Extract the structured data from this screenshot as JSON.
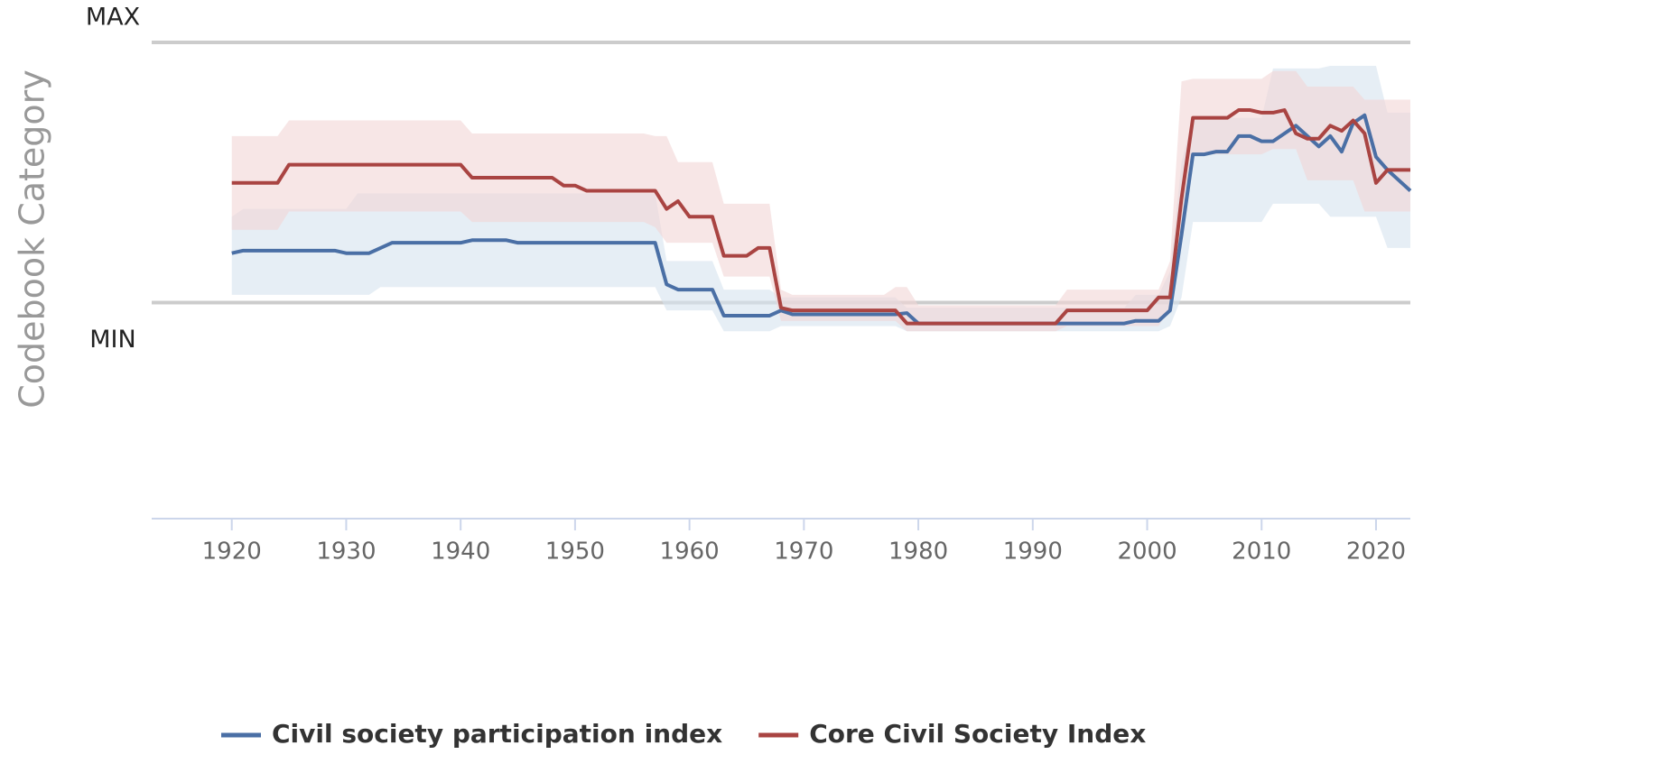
{
  "chart_data": {
    "type": "line",
    "ylabel": "Codebook Category",
    "x": [
      1920,
      1921,
      1922,
      1923,
      1924,
      1925,
      1926,
      1927,
      1928,
      1929,
      1930,
      1931,
      1932,
      1933,
      1934,
      1935,
      1936,
      1937,
      1938,
      1939,
      1940,
      1941,
      1942,
      1943,
      1944,
      1945,
      1946,
      1947,
      1948,
      1949,
      1950,
      1951,
      1952,
      1953,
      1954,
      1955,
      1956,
      1957,
      1958,
      1959,
      1960,
      1961,
      1962,
      1963,
      1964,
      1965,
      1966,
      1967,
      1968,
      1969,
      1970,
      1971,
      1972,
      1973,
      1974,
      1975,
      1976,
      1977,
      1978,
      1979,
      1980,
      1981,
      1982,
      1983,
      1984,
      1985,
      1986,
      1987,
      1988,
      1989,
      1990,
      1991,
      1992,
      1993,
      1994,
      1995,
      1996,
      1997,
      1998,
      1999,
      2000,
      2001,
      2002,
      2003,
      2004,
      2005,
      2006,
      2007,
      2008,
      2009,
      2010,
      2011,
      2012,
      2013,
      2014,
      2015,
      2016,
      2017,
      2018,
      2019,
      2020,
      2021,
      2022,
      2023
    ],
    "xlim": [
      1913,
      2023
    ],
    "xticks": [
      1920,
      1930,
      1940,
      1950,
      1960,
      1970,
      1980,
      1990,
      2000,
      2010,
      2020
    ],
    "ylim": [
      -0.83,
      1
    ],
    "yticks": [
      {
        "value": 1,
        "label": "MAX"
      },
      {
        "value": 0,
        "label": "MIN"
      }
    ],
    "grid": true,
    "legend": "bottom",
    "series": [
      {
        "name": "Civil society participation index",
        "color": "#4a6fa5",
        "band_color": "#d6e2ef",
        "values": [
          0.19,
          0.2,
          0.2,
          0.2,
          0.2,
          0.2,
          0.2,
          0.2,
          0.2,
          0.2,
          0.19,
          0.19,
          0.19,
          0.21,
          0.23,
          0.23,
          0.23,
          0.23,
          0.23,
          0.23,
          0.23,
          0.24,
          0.24,
          0.24,
          0.24,
          0.23,
          0.23,
          0.23,
          0.23,
          0.23,
          0.23,
          0.23,
          0.23,
          0.23,
          0.23,
          0.23,
          0.23,
          0.23,
          0.07,
          0.05,
          0.05,
          0.05,
          0.05,
          -0.05,
          -0.05,
          -0.05,
          -0.05,
          -0.05,
          -0.03,
          -0.045,
          -0.045,
          -0.045,
          -0.045,
          -0.045,
          -0.045,
          -0.045,
          -0.045,
          -0.045,
          -0.045,
          -0.04,
          -0.08,
          -0.08,
          -0.08,
          -0.08,
          -0.08,
          -0.08,
          -0.08,
          -0.08,
          -0.08,
          -0.08,
          -0.08,
          -0.08,
          -0.08,
          -0.08,
          -0.08,
          -0.08,
          -0.08,
          -0.08,
          -0.08,
          -0.07,
          -0.07,
          -0.07,
          -0.03,
          0.26,
          0.57,
          0.57,
          0.58,
          0.58,
          0.64,
          0.64,
          0.62,
          0.62,
          0.65,
          0.68,
          0.64,
          0.6,
          0.64,
          0.58,
          0.69,
          0.72,
          0.56,
          0.51,
          0.47,
          0.43
        ],
        "upper": [
          0.33,
          0.36,
          0.36,
          0.36,
          0.36,
          0.36,
          0.36,
          0.36,
          0.36,
          0.36,
          0.36,
          0.42,
          0.42,
          0.42,
          0.42,
          0.42,
          0.42,
          0.42,
          0.42,
          0.42,
          0.42,
          0.42,
          0.42,
          0.42,
          0.42,
          0.42,
          0.42,
          0.42,
          0.42,
          0.42,
          0.42,
          0.42,
          0.42,
          0.42,
          0.42,
          0.42,
          0.42,
          0.42,
          0.16,
          0.16,
          0.16,
          0.16,
          0.16,
          0.05,
          0.05,
          0.05,
          0.05,
          0.05,
          0.02,
          0.02,
          0.02,
          0.02,
          0.02,
          0.02,
          0.02,
          0.02,
          0.02,
          0.02,
          0.02,
          -0.02,
          -0.02,
          -0.02,
          -0.02,
          -0.02,
          -0.02,
          -0.02,
          -0.02,
          -0.02,
          -0.02,
          -0.02,
          -0.02,
          -0.02,
          -0.02,
          -0.02,
          -0.02,
          -0.02,
          -0.02,
          -0.02,
          -0.02,
          0.03,
          0.03,
          0.03,
          0.12,
          0.54,
          0.71,
          0.71,
          0.71,
          0.71,
          0.71,
          0.71,
          0.71,
          0.9,
          0.9,
          0.9,
          0.9,
          0.9,
          0.91,
          0.91,
          0.91,
          0.91,
          0.91,
          0.73,
          0.73,
          0.73
        ],
        "lower": [
          0.03,
          0.03,
          0.03,
          0.03,
          0.03,
          0.03,
          0.03,
          0.03,
          0.03,
          0.03,
          0.03,
          0.03,
          0.03,
          0.06,
          0.06,
          0.06,
          0.06,
          0.06,
          0.06,
          0.06,
          0.06,
          0.06,
          0.06,
          0.06,
          0.06,
          0.06,
          0.06,
          0.06,
          0.06,
          0.06,
          0.06,
          0.06,
          0.06,
          0.06,
          0.06,
          0.06,
          0.06,
          0.06,
          -0.03,
          -0.03,
          -0.03,
          -0.03,
          -0.03,
          -0.11,
          -0.11,
          -0.11,
          -0.11,
          -0.11,
          -0.09,
          -0.09,
          -0.09,
          -0.09,
          -0.09,
          -0.09,
          -0.09,
          -0.09,
          -0.09,
          -0.09,
          -0.09,
          -0.11,
          -0.11,
          -0.11,
          -0.11,
          -0.11,
          -0.11,
          -0.11,
          -0.11,
          -0.11,
          -0.11,
          -0.11,
          -0.11,
          -0.11,
          -0.11,
          -0.11,
          -0.11,
          -0.11,
          -0.11,
          -0.11,
          -0.11,
          -0.11,
          -0.11,
          -0.11,
          -0.09,
          0.02,
          0.31,
          0.31,
          0.31,
          0.31,
          0.31,
          0.31,
          0.31,
          0.38,
          0.38,
          0.38,
          0.38,
          0.38,
          0.33,
          0.33,
          0.33,
          0.33,
          0.33,
          0.21,
          0.21,
          0.21
        ]
      },
      {
        "name": "Core Civil Society Index",
        "color": "#a94442",
        "band_color": "#f2d6d6",
        "values": [
          0.46,
          0.46,
          0.46,
          0.46,
          0.46,
          0.53,
          0.53,
          0.53,
          0.53,
          0.53,
          0.53,
          0.53,
          0.53,
          0.53,
          0.53,
          0.53,
          0.53,
          0.53,
          0.53,
          0.53,
          0.53,
          0.48,
          0.48,
          0.48,
          0.48,
          0.48,
          0.48,
          0.48,
          0.48,
          0.45,
          0.45,
          0.43,
          0.43,
          0.43,
          0.43,
          0.43,
          0.43,
          0.43,
          0.36,
          0.39,
          0.33,
          0.33,
          0.33,
          0.18,
          0.18,
          0.18,
          0.21,
          0.21,
          -0.02,
          -0.03,
          -0.03,
          -0.03,
          -0.03,
          -0.03,
          -0.03,
          -0.03,
          -0.03,
          -0.03,
          -0.03,
          -0.08,
          -0.08,
          -0.08,
          -0.08,
          -0.08,
          -0.08,
          -0.08,
          -0.08,
          -0.08,
          -0.08,
          -0.08,
          -0.08,
          -0.08,
          -0.08,
          -0.03,
          -0.03,
          -0.03,
          -0.03,
          -0.03,
          -0.03,
          -0.03,
          -0.03,
          0.02,
          0.02,
          0.4,
          0.71,
          0.71,
          0.71,
          0.71,
          0.74,
          0.74,
          0.73,
          0.73,
          0.74,
          0.65,
          0.63,
          0.63,
          0.68,
          0.66,
          0.7,
          0.65,
          0.46,
          0.51,
          0.51,
          0.51
        ],
        "upper": [
          0.64,
          0.64,
          0.64,
          0.64,
          0.64,
          0.7,
          0.7,
          0.7,
          0.7,
          0.7,
          0.7,
          0.7,
          0.7,
          0.7,
          0.7,
          0.7,
          0.7,
          0.7,
          0.7,
          0.7,
          0.7,
          0.65,
          0.65,
          0.65,
          0.65,
          0.65,
          0.65,
          0.65,
          0.65,
          0.65,
          0.65,
          0.65,
          0.65,
          0.65,
          0.65,
          0.65,
          0.65,
          0.64,
          0.64,
          0.54,
          0.54,
          0.54,
          0.54,
          0.38,
          0.38,
          0.38,
          0.38,
          0.38,
          0.05,
          0.03,
          0.03,
          0.03,
          0.03,
          0.03,
          0.03,
          0.03,
          0.03,
          0.03,
          0.06,
          0.06,
          -0.01,
          -0.01,
          -0.01,
          -0.01,
          -0.01,
          -0.01,
          -0.01,
          -0.01,
          -0.01,
          -0.01,
          -0.01,
          -0.01,
          -0.01,
          0.05,
          0.05,
          0.05,
          0.05,
          0.05,
          0.05,
          0.05,
          0.05,
          0.05,
          0.16,
          0.85,
          0.86,
          0.86,
          0.86,
          0.86,
          0.86,
          0.86,
          0.86,
          0.89,
          0.89,
          0.89,
          0.83,
          0.83,
          0.83,
          0.83,
          0.83,
          0.78,
          0.78,
          0.78,
          0.78,
          0.78
        ],
        "lower": [
          0.28,
          0.28,
          0.28,
          0.28,
          0.28,
          0.35,
          0.35,
          0.35,
          0.35,
          0.35,
          0.35,
          0.35,
          0.35,
          0.35,
          0.35,
          0.35,
          0.35,
          0.35,
          0.35,
          0.35,
          0.35,
          0.31,
          0.31,
          0.31,
          0.31,
          0.31,
          0.31,
          0.31,
          0.31,
          0.31,
          0.31,
          0.31,
          0.31,
          0.31,
          0.31,
          0.31,
          0.31,
          0.29,
          0.23,
          0.23,
          0.23,
          0.23,
          0.23,
          0.1,
          0.1,
          0.1,
          0.1,
          0.1,
          -0.07,
          -0.07,
          -0.07,
          -0.07,
          -0.07,
          -0.07,
          -0.07,
          -0.07,
          -0.07,
          -0.07,
          -0.07,
          -0.11,
          -0.11,
          -0.11,
          -0.11,
          -0.11,
          -0.11,
          -0.11,
          -0.11,
          -0.11,
          -0.11,
          -0.11,
          -0.11,
          -0.11,
          -0.11,
          -0.09,
          -0.09,
          -0.09,
          -0.09,
          -0.09,
          -0.09,
          -0.09,
          -0.09,
          -0.09,
          -0.02,
          0.29,
          0.57,
          0.57,
          0.57,
          0.57,
          0.57,
          0.57,
          0.57,
          0.59,
          0.59,
          0.59,
          0.47,
          0.47,
          0.47,
          0.47,
          0.47,
          0.35,
          0.35,
          0.35,
          0.35,
          0.35
        ]
      }
    ]
  }
}
